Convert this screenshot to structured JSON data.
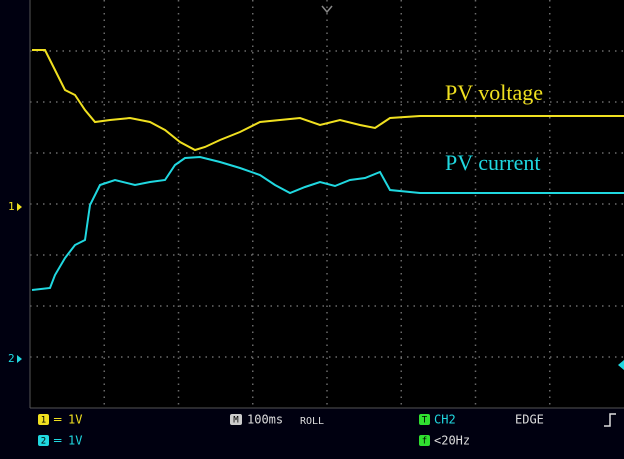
{
  "traces": {
    "voltage": "PV voltage",
    "current": "PV current"
  },
  "channel_markers": [
    "1",
    "2"
  ],
  "status": {
    "ch1_badge": "1",
    "ch1_scale": "1V",
    "ch2_badge": "2",
    "ch2_scale": "1V",
    "timebase_badge": "M",
    "timebase": "100ms",
    "mode": "ROLL",
    "trigger_badge": "T",
    "trigger_source": "CH2",
    "trigger_type": "EDGE",
    "filter_badge": "f",
    "filter": "<20Hz"
  }
}
